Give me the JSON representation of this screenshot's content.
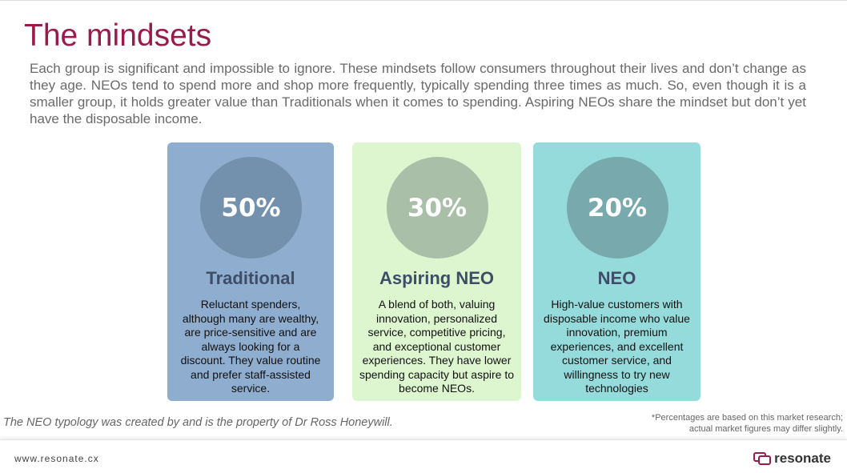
{
  "header": {
    "title": "The mindsets",
    "intro": "Each group is significant and impossible to ignore. These mindsets follow consumers throughout their lives and don’t change as they age. NEOs tend to spend more and shop more frequently, typically spending three times as much. So, even though it is a smaller group, it holds greater value than Traditionals when it comes to spending. Aspiring NEOs share the mindset but don’t yet have the disposable income."
  },
  "cards": [
    {
      "percent": "50%",
      "name": "Traditional",
      "description": "Reluctant spenders, although many are wealthy, are price-sensitive and are always looking for a discount. They value routine and prefer staff-assisted service."
    },
    {
      "percent": "30%",
      "name": "Aspiring NEO",
      "description": "A blend of both, valuing innovation, personalized service, competitive pricing, and exceptional customer experiences. They have lower spending capacity but aspire to become NEOs."
    },
    {
      "percent": "20%",
      "name": "NEO",
      "description": "High-value customers with disposable income who value innovation, premium experiences, and excellent customer service, and willingness to try new technologies"
    }
  ],
  "footnote": {
    "credit": "The NEO typology was created by and is the property of Dr Ross Honeywill.",
    "disclaimer": "*Percentages are based on this market research; actual market figures may differ slightly."
  },
  "footer": {
    "url": "www.resonate.cx",
    "brand": "resonate"
  }
}
